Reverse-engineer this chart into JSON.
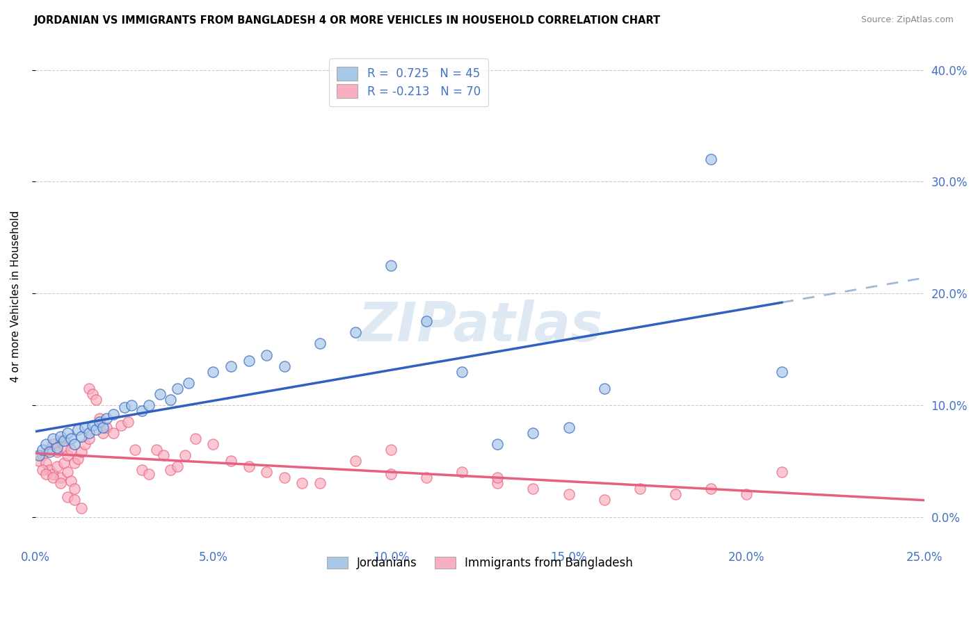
{
  "title": "JORDANIAN VS IMMIGRANTS FROM BANGLADESH 4 OR MORE VEHICLES IN HOUSEHOLD CORRELATION CHART",
  "source": "Source: ZipAtlas.com",
  "ylabel": "4 or more Vehicles in Household",
  "xlim": [
    0.0,
    0.25
  ],
  "ylim": [
    -0.02,
    0.42
  ],
  "plot_ylim": [
    0.0,
    0.4
  ],
  "xticks": [
    0.0,
    0.05,
    0.1,
    0.15,
    0.2,
    0.25
  ],
  "yticks": [
    0.0,
    0.1,
    0.2,
    0.3,
    0.4
  ],
  "xtick_labels": [
    "0.0%",
    "5.0%",
    "10.0%",
    "15.0%",
    "20.0%",
    "25.0%"
  ],
  "ytick_labels": [
    "0.0%",
    "10.0%",
    "20.0%",
    "30.0%",
    "40.0%"
  ],
  "blue_R": "0.725",
  "blue_N": "45",
  "pink_R": "-0.213",
  "pink_N": "70",
  "blue_scatter_color": "#a8c8e8",
  "pink_scatter_color": "#f8b0c0",
  "line_blue": "#3060c0",
  "line_pink": "#e86080",
  "legend_labels": [
    "Jordanians",
    "Immigrants from Bangladesh"
  ],
  "watermark": "ZIPatlas",
  "blue_scatter_x": [
    0.001,
    0.002,
    0.003,
    0.004,
    0.005,
    0.006,
    0.007,
    0.008,
    0.009,
    0.01,
    0.011,
    0.012,
    0.013,
    0.014,
    0.015,
    0.016,
    0.017,
    0.018,
    0.019,
    0.02,
    0.022,
    0.025,
    0.027,
    0.03,
    0.032,
    0.035,
    0.038,
    0.04,
    0.043,
    0.05,
    0.055,
    0.06,
    0.065,
    0.07,
    0.08,
    0.09,
    0.1,
    0.11,
    0.12,
    0.13,
    0.14,
    0.15,
    0.16,
    0.19,
    0.21
  ],
  "blue_scatter_y": [
    0.055,
    0.06,
    0.065,
    0.058,
    0.07,
    0.062,
    0.072,
    0.068,
    0.075,
    0.07,
    0.065,
    0.078,
    0.072,
    0.08,
    0.075,
    0.082,
    0.078,
    0.085,
    0.08,
    0.088,
    0.092,
    0.098,
    0.1,
    0.095,
    0.1,
    0.11,
    0.105,
    0.115,
    0.12,
    0.13,
    0.135,
    0.14,
    0.145,
    0.135,
    0.155,
    0.165,
    0.225,
    0.175,
    0.13,
    0.065,
    0.075,
    0.08,
    0.115,
    0.32,
    0.13
  ],
  "pink_scatter_x": [
    0.001,
    0.002,
    0.003,
    0.004,
    0.004,
    0.005,
    0.005,
    0.006,
    0.006,
    0.007,
    0.007,
    0.008,
    0.008,
    0.009,
    0.009,
    0.01,
    0.01,
    0.011,
    0.011,
    0.012,
    0.013,
    0.014,
    0.015,
    0.015,
    0.016,
    0.017,
    0.018,
    0.019,
    0.02,
    0.022,
    0.024,
    0.026,
    0.028,
    0.03,
    0.032,
    0.034,
    0.036,
    0.038,
    0.04,
    0.042,
    0.045,
    0.05,
    0.055,
    0.06,
    0.065,
    0.07,
    0.075,
    0.08,
    0.09,
    0.1,
    0.11,
    0.12,
    0.13,
    0.14,
    0.15,
    0.16,
    0.17,
    0.18,
    0.19,
    0.2,
    0.21,
    0.002,
    0.003,
    0.005,
    0.007,
    0.009,
    0.011,
    0.013,
    0.1,
    0.13
  ],
  "pink_scatter_y": [
    0.05,
    0.055,
    0.048,
    0.06,
    0.042,
    0.065,
    0.038,
    0.058,
    0.045,
    0.068,
    0.035,
    0.062,
    0.048,
    0.055,
    0.04,
    0.06,
    0.032,
    0.048,
    0.025,
    0.052,
    0.058,
    0.065,
    0.115,
    0.07,
    0.11,
    0.105,
    0.088,
    0.075,
    0.08,
    0.075,
    0.082,
    0.085,
    0.06,
    0.042,
    0.038,
    0.06,
    0.055,
    0.042,
    0.045,
    0.055,
    0.07,
    0.065,
    0.05,
    0.045,
    0.04,
    0.035,
    0.03,
    0.03,
    0.05,
    0.038,
    0.035,
    0.04,
    0.03,
    0.025,
    0.02,
    0.015,
    0.025,
    0.02,
    0.025,
    0.02,
    0.04,
    0.042,
    0.038,
    0.035,
    0.03,
    0.018,
    0.015,
    0.008,
    0.06,
    0.035
  ]
}
